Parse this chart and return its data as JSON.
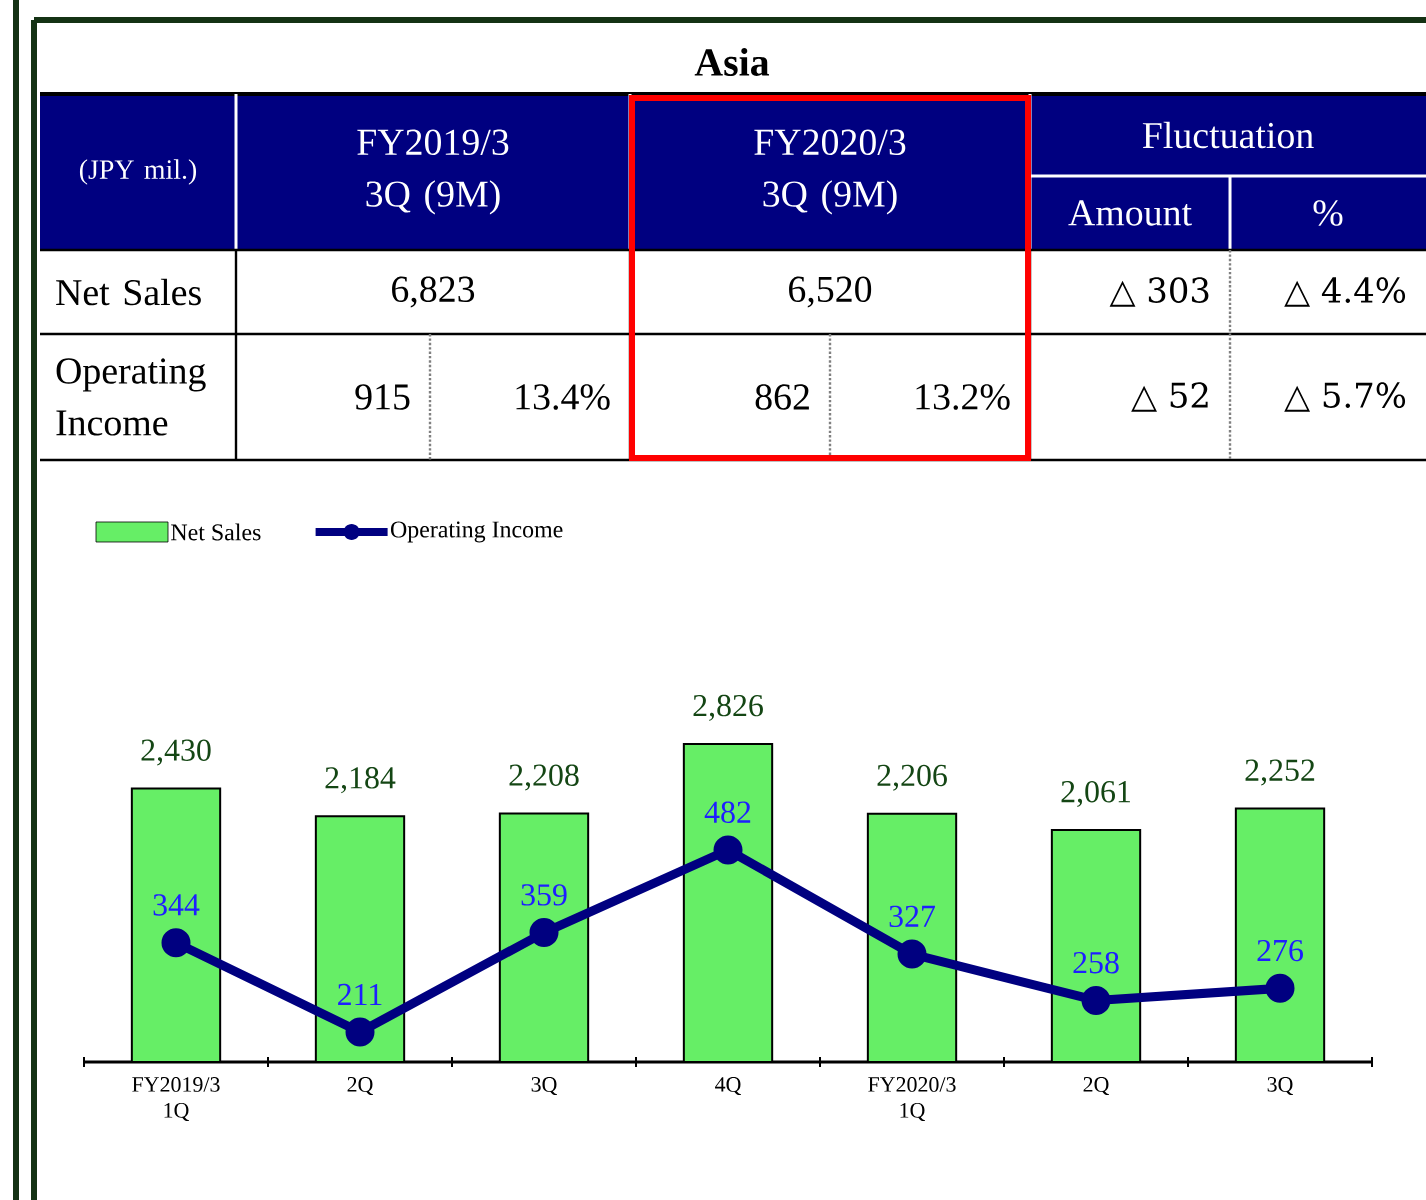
{
  "chart_data": {
    "type": "bar",
    "title": "Asia",
    "categories": [
      "FY2019/3 1Q",
      "2Q",
      "3Q",
      "4Q",
      "FY2020/3 1Q",
      "2Q",
      "3Q"
    ],
    "series": [
      {
        "name": "Net Sales",
        "color": "#66ee66",
        "values": [
          2430,
          2184,
          2208,
          2826,
          2206,
          2061,
          2252
        ],
        "value_labels": [
          "2,430",
          "2,184",
          "2,208",
          "2,826",
          "2,206",
          "2,061",
          "2,252"
        ]
      },
      {
        "name": "Operating Income",
        "type": "line",
        "axis": "y2",
        "color": "#000080",
        "values": [
          344,
          211,
          359,
          482,
          327,
          258,
          276
        ],
        "value_labels": [
          "344",
          "211",
          "359",
          "482",
          "327",
          "258",
          "276"
        ]
      }
    ],
    "tick_labels": "x",
    "legend": "top left",
    "marker": "circle",
    "data_labels": true,
    "annotations": [
      "(JPY mil.)",
      "FY2019/3 3Q (9M)",
      "FY2020/3 3Q (9M)",
      "Fluctuation",
      "Amount",
      "%",
      "Net Sales",
      "6,823",
      "6,520",
      "△ 303",
      "△ 4.4%",
      "Operating Income",
      "915",
      "13.4%",
      "862",
      "13.2%",
      "△ 52",
      "△ 5.7%"
    ]
  }
}
